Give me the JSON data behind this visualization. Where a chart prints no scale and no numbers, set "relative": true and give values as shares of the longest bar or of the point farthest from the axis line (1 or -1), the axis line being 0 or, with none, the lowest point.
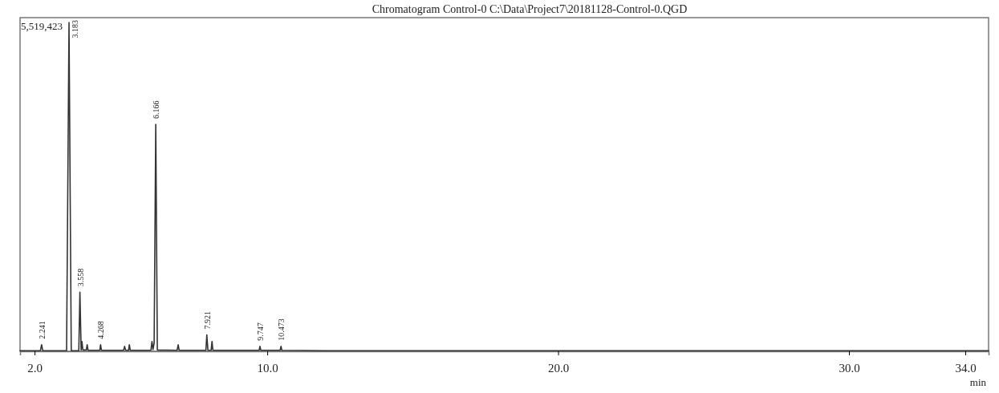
{
  "chart_data": {
    "type": "line",
    "title": "Chromatogram Control-0 C:\\Data\\Project7\\20181128-Control-0.QGD",
    "xlabel": "min",
    "relative": true,
    "xlim": [
      1.5,
      34.8
    ],
    "xticks": [
      {
        "value": 2,
        "label": "2.0"
      },
      {
        "value": 10,
        "label": "10.0"
      },
      {
        "value": 20,
        "label": "20.0"
      },
      {
        "value": 30,
        "label": "30.0"
      },
      {
        "value": 34,
        "label": "34.0"
      }
    ],
    "grid": false,
    "legend": false,
    "marker": "none",
    "line_style": "solid",
    "series": [
      {
        "color": "#333333",
        "x": [
          1.5,
          2.2,
          2.241,
          2.28,
          3.1,
          3.183,
          3.26,
          3.52,
          3.558,
          3.6,
          3.627,
          3.66,
          3.78,
          3.807,
          3.84,
          4.24,
          4.268,
          4.3,
          5.06,
          5.094,
          5.13,
          5.23,
          5.257,
          5.29,
          6.0,
          6.036,
          6.07,
          6.11,
          6.166,
          6.22,
          6.9,
          6.938,
          6.97,
          7.89,
          7.921,
          7.96,
          8.07,
          8.1,
          8.13,
          9.72,
          9.747,
          9.78,
          10.44,
          10.473,
          10.5,
          12,
          20,
          30,
          34.8
        ],
        "values": [
          0.002,
          0.002,
          0.02,
          0.002,
          0.002,
          1,
          0.002,
          0.002,
          0.18,
          0.004,
          0.03,
          0.004,
          0.004,
          0.02,
          0.003,
          0.003,
          0.02,
          0.003,
          0.003,
          0.015,
          0.003,
          0.003,
          0.02,
          0.003,
          0.003,
          0.03,
          0.005,
          0.025,
          0.69,
          0.004,
          0.003,
          0.02,
          0.003,
          0.003,
          0.05,
          0.003,
          0.003,
          0.03,
          0.003,
          0.003,
          0.015,
          0.003,
          0.003,
          0.015,
          0.003,
          0.002,
          0.002,
          0.002,
          0.002
        ]
      }
    ],
    "annotations": [
      "5,519,423",
      {
        "text": "2.241",
        "x": 2.241,
        "y": 0.02
      },
      {
        "text": "3.183",
        "x": 3.183,
        "y": 1
      },
      {
        "text": "3.558",
        "x": 3.558,
        "y": 0.18
      },
      {
        "text": "4.268",
        "x": 4.268,
        "y": 0.02
      },
      {
        "text": "6.166",
        "x": 6.166,
        "y": 0.69
      },
      {
        "text": "7.921",
        "x": 7.921,
        "y": 0.05
      },
      {
        "text": "9.747",
        "x": 9.747,
        "y": 0.015
      },
      {
        "text": "10.473",
        "x": 10.473,
        "y": 0.015
      }
    ]
  }
}
